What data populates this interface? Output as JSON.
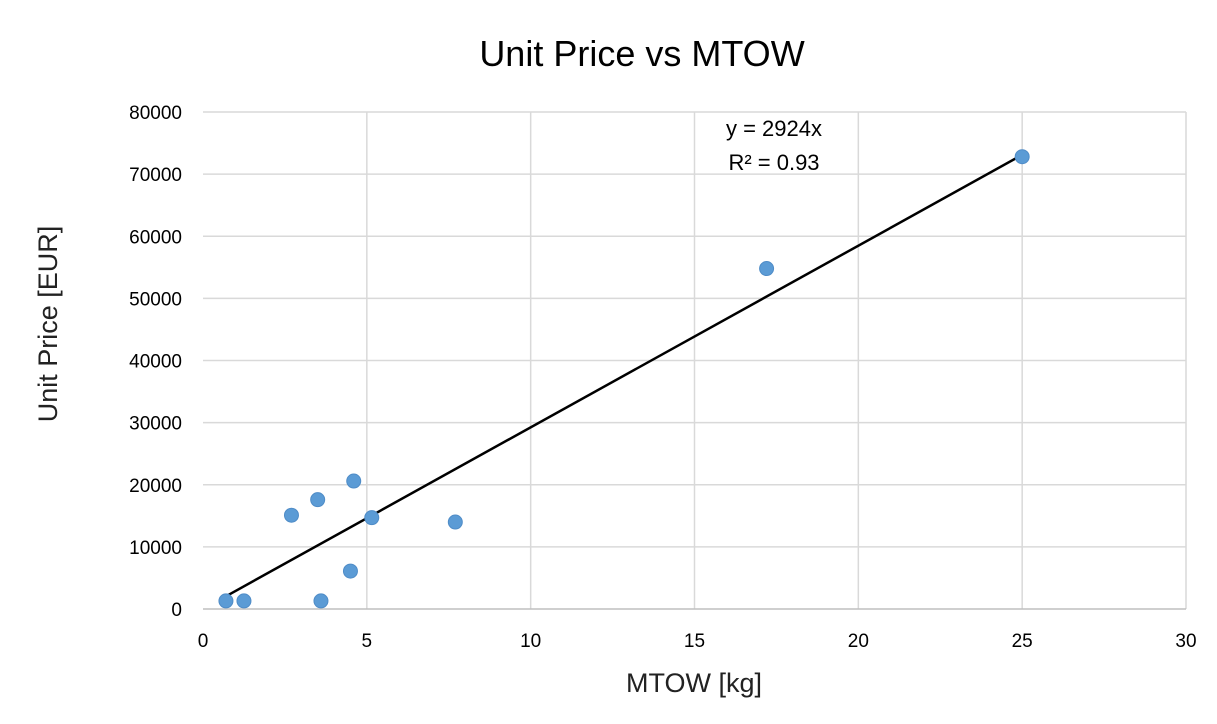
{
  "chart_data": {
    "type": "scatter",
    "title": "Unit Price vs MTOW",
    "xlabel": "MTOW [kg]",
    "ylabel": "Unit Price [EUR]",
    "xlim": [
      0,
      30
    ],
    "ylim": [
      0,
      80000
    ],
    "x_ticks": [
      "0",
      "5",
      "10",
      "15",
      "20",
      "25",
      "30"
    ],
    "y_ticks": [
      "0",
      "10000",
      "20000",
      "30000",
      "40000",
      "50000",
      "60000",
      "70000",
      "80000"
    ],
    "grid": true,
    "marker_color": "#5b9bd5",
    "trendline_color": "#000000",
    "points": [
      {
        "x": 0.7,
        "y": 1300
      },
      {
        "x": 1.25,
        "y": 1300
      },
      {
        "x": 2.7,
        "y": 15100
      },
      {
        "x": 3.5,
        "y": 17600
      },
      {
        "x": 3.6,
        "y": 1300
      },
      {
        "x": 4.5,
        "y": 6100
      },
      {
        "x": 4.6,
        "y": 20600
      },
      {
        "x": 5.15,
        "y": 14700
      },
      {
        "x": 7.7,
        "y": 14000
      },
      {
        "x": 17.2,
        "y": 54800
      },
      {
        "x": 25.0,
        "y": 72800
      }
    ],
    "trendline": {
      "type": "linear-through-origin",
      "slope": 2924,
      "x_range": [
        0.7,
        25.0
      ],
      "equation": "y = 2924x",
      "r_squared": "R² = 0.93"
    }
  }
}
